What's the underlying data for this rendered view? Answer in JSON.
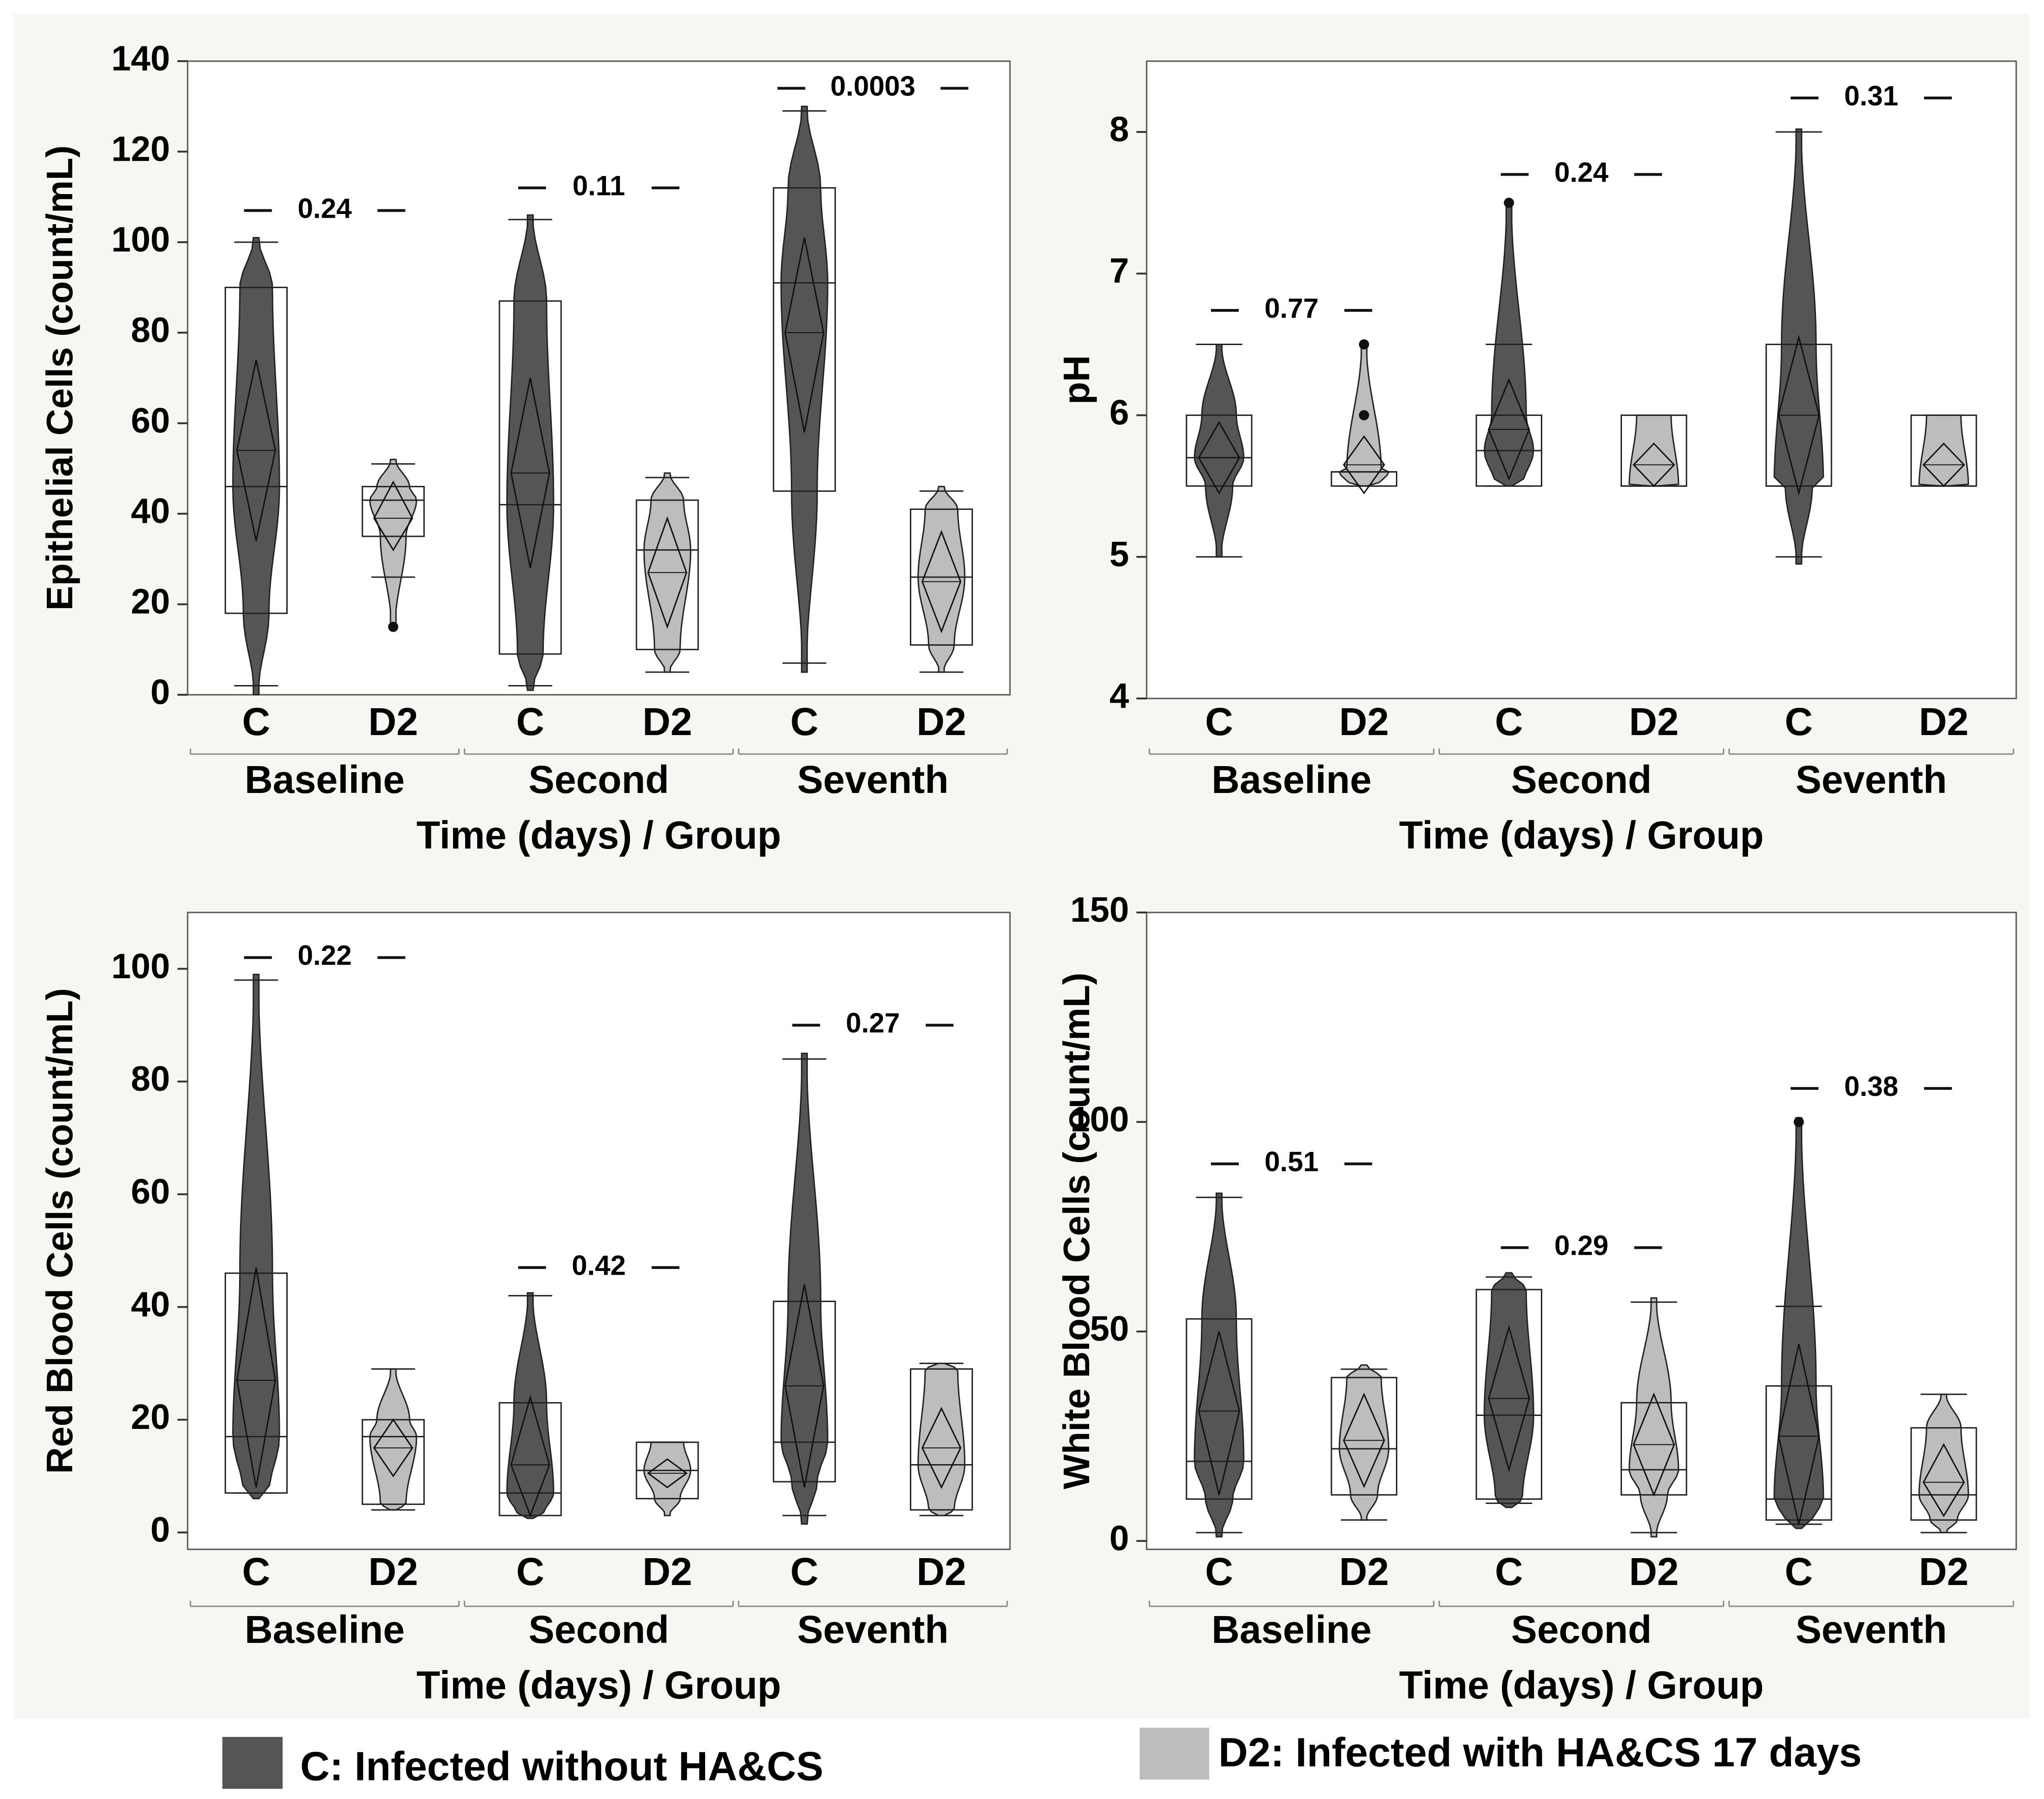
{
  "figure": {
    "x_axis_title": "Time (days) / Group",
    "time_labels": [
      "Baseline",
      "Second",
      "Seventh"
    ],
    "group_labels": [
      "C",
      "D2"
    ],
    "legend": [
      {
        "key": "C",
        "label": "C: Infected without HA&CS",
        "color": "#555555"
      },
      {
        "key": "D2",
        "label": "D2: Infected with HA&CS 17 days",
        "color": "#bdbdbd"
      }
    ],
    "colors": {
      "C": "#555555",
      "D2": "#bdbdbd",
      "background": "#f6f6f3",
      "plot_bg": "#ffffff"
    }
  },
  "chart_data": [
    {
      "type": "violin",
      "ylabel": "Epithelial Cells (count/mL)",
      "xlabel": "Time (days) / Group",
      "ylim": [
        0,
        140
      ],
      "yticks": [
        0,
        20,
        40,
        60,
        80,
        100,
        120,
        140
      ],
      "groups": [
        {
          "time": "Baseline",
          "group": "C",
          "min": 0,
          "max": 101,
          "q1": 18,
          "median": 46,
          "q3": 90,
          "mean": 54,
          "ci": [
            34,
            74
          ],
          "whisker": [
            2,
            100
          ],
          "outliers": []
        },
        {
          "time": "Baseline",
          "group": "D2",
          "min": 15,
          "max": 52,
          "q1": 35,
          "median": 43,
          "q3": 46,
          "mean": 39,
          "ci": [
            32,
            47
          ],
          "whisker": [
            26,
            51
          ],
          "outliers": [
            15
          ]
        },
        {
          "time": "Second",
          "group": "C",
          "min": 1,
          "max": 106,
          "q1": 9,
          "median": 42,
          "q3": 87,
          "mean": 49,
          "ci": [
            28,
            70
          ],
          "whisker": [
            2,
            105
          ],
          "outliers": []
        },
        {
          "time": "Second",
          "group": "D2",
          "min": 5,
          "max": 49,
          "q1": 10,
          "median": 32,
          "q3": 43,
          "mean": 27,
          "ci": [
            15,
            39
          ],
          "whisker": [
            5,
            48
          ],
          "outliers": []
        },
        {
          "time": "Seventh",
          "group": "C",
          "min": 5,
          "max": 130,
          "q1": 45,
          "median": 91,
          "q3": 112,
          "mean": 80,
          "ci": [
            58,
            101
          ],
          "whisker": [
            7,
            129
          ],
          "outliers": []
        },
        {
          "time": "Seventh",
          "group": "D2",
          "min": 5,
          "max": 46,
          "q1": 11,
          "median": 26,
          "q3": 41,
          "mean": 25,
          "ci": [
            14,
            36
          ],
          "whisker": [
            5,
            45
          ],
          "outliers": []
        }
      ],
      "p_values": [
        {
          "time": "Baseline",
          "text": "0.24",
          "y": 107
        },
        {
          "time": "Second",
          "text": "0.11",
          "y": 112
        },
        {
          "time": "Seventh",
          "text": "0.0003",
          "y": 134
        }
      ]
    },
    {
      "type": "violin",
      "ylabel": "pH",
      "xlabel": "Time (days) / Group",
      "ylim": [
        4,
        8.5
      ],
      "yticks": [
        4,
        5,
        6,
        7,
        8
      ],
      "groups": [
        {
          "time": "Baseline",
          "group": "C",
          "min": 5,
          "max": 6.5,
          "q1": 5.5,
          "median": 5.7,
          "q3": 6,
          "mean": 5.7,
          "ci": [
            5.45,
            5.95
          ],
          "whisker": [
            5,
            6.5
          ],
          "outliers": []
        },
        {
          "time": "Baseline",
          "group": "D2",
          "min": 5.5,
          "max": 6.5,
          "q1": 5.5,
          "median": 5.6,
          "q3": 5.6,
          "mean": 5.65,
          "ci": [
            5.45,
            5.85
          ],
          "whisker": [
            5.5,
            5.6
          ],
          "outliers": [
            6,
            6.5
          ]
        },
        {
          "time": "Second",
          "group": "C",
          "min": 5.5,
          "max": 7.5,
          "q1": 5.5,
          "median": 5.75,
          "q3": 6,
          "mean": 5.9,
          "ci": [
            5.55,
            6.25
          ],
          "whisker": [
            5.5,
            6.5
          ],
          "outliers": [
            7.5
          ]
        },
        {
          "time": "Second",
          "group": "D2",
          "min": 5.5,
          "max": 6,
          "q1": 5.5,
          "median": 5.5,
          "q3": 6,
          "mean": 5.65,
          "ci": [
            5.5,
            5.8
          ],
          "whisker": [
            5.5,
            6
          ],
          "outliers": []
        },
        {
          "time": "Seventh",
          "group": "C",
          "min": 4.95,
          "max": 8.02,
          "q1": 5.5,
          "median": 5.5,
          "q3": 6.5,
          "mean": 6,
          "ci": [
            5.45,
            6.55
          ],
          "whisker": [
            5,
            8
          ],
          "outliers": []
        },
        {
          "time": "Seventh",
          "group": "D2",
          "min": 5.5,
          "max": 6,
          "q1": 5.5,
          "median": 5.5,
          "q3": 6,
          "mean": 5.65,
          "ci": [
            5.5,
            5.8
          ],
          "whisker": [
            5.5,
            6
          ],
          "outliers": []
        }
      ],
      "p_values": [
        {
          "time": "Baseline",
          "text": "0.77",
          "y": 6.74
        },
        {
          "time": "Second",
          "text": "0.24",
          "y": 7.7
        },
        {
          "time": "Seventh",
          "text": "0.31",
          "y": 8.24
        }
      ]
    },
    {
      "type": "violin",
      "ylabel": "Red Blood Cells (count/mL)",
      "xlabel": "Time (days) / Group",
      "ylim": [
        -3,
        110
      ],
      "yticks": [
        0,
        20,
        40,
        60,
        80,
        100
      ],
      "groups": [
        {
          "time": "Baseline",
          "group": "C",
          "min": 6,
          "max": 99,
          "q1": 7,
          "median": 17,
          "q3": 46,
          "mean": 27,
          "ci": [
            8,
            47
          ],
          "whisker": [
            7,
            98
          ],
          "outliers": []
        },
        {
          "time": "Baseline",
          "group": "D2",
          "min": 4,
          "max": 29,
          "q1": 5,
          "median": 17,
          "q3": 20,
          "mean": 15,
          "ci": [
            10,
            20
          ],
          "whisker": [
            4,
            29
          ],
          "outliers": []
        },
        {
          "time": "Second",
          "group": "C",
          "min": 2.5,
          "max": 42.5,
          "q1": 3,
          "median": 7,
          "q3": 23,
          "mean": 12,
          "ci": [
            3,
            24
          ],
          "whisker": [
            3,
            42
          ],
          "outliers": []
        },
        {
          "time": "Second",
          "group": "D2",
          "min": 3,
          "max": 16,
          "q1": 6,
          "median": 11,
          "q3": 16,
          "mean": 10.5,
          "ci": [
            8,
            13
          ],
          "whisker": [
            6,
            16
          ],
          "outliers": []
        },
        {
          "time": "Seventh",
          "group": "C",
          "min": 1.5,
          "max": 85,
          "q1": 9,
          "median": 16,
          "q3": 41,
          "mean": 26,
          "ci": [
            8,
            44
          ],
          "whisker": [
            3,
            84
          ],
          "outliers": []
        },
        {
          "time": "Seventh",
          "group": "D2",
          "min": 3,
          "max": 30,
          "q1": 4,
          "median": 12,
          "q3": 29,
          "mean": 15,
          "ci": [
            8,
            22
          ],
          "whisker": [
            3,
            30
          ],
          "outliers": []
        }
      ],
      "p_values": [
        {
          "time": "Baseline",
          "text": "0.22",
          "y": 102
        },
        {
          "time": "Second",
          "text": "0.42",
          "y": 47
        },
        {
          "time": "Seventh",
          "text": "0.27",
          "y": 90
        }
      ]
    },
    {
      "type": "violin",
      "ylabel": "White Blood Cells (count/mL)",
      "xlabel": "Time (days) / Group",
      "ylim": [
        -2,
        150
      ],
      "yticks": [
        0,
        50,
        100,
        150
      ],
      "groups": [
        {
          "time": "Baseline",
          "group": "C",
          "min": 1,
          "max": 83,
          "q1": 10,
          "median": 19,
          "q3": 53,
          "mean": 31,
          "ci": [
            11,
            50
          ],
          "whisker": [
            2,
            82
          ],
          "outliers": []
        },
        {
          "time": "Baseline",
          "group": "D2",
          "min": 5,
          "max": 42,
          "q1": 11,
          "median": 22,
          "q3": 39,
          "mean": 24,
          "ci": [
            13,
            35
          ],
          "whisker": [
            5,
            41
          ],
          "outliers": []
        },
        {
          "time": "Second",
          "group": "C",
          "min": 8,
          "max": 64,
          "q1": 10,
          "median": 30,
          "q3": 60,
          "mean": 34,
          "ci": [
            17,
            51
          ],
          "whisker": [
            9,
            63
          ],
          "outliers": []
        },
        {
          "time": "Second",
          "group": "D2",
          "min": 1,
          "max": 58,
          "q1": 11,
          "median": 17,
          "q3": 33,
          "mean": 23,
          "ci": [
            11,
            35
          ],
          "whisker": [
            2,
            57
          ],
          "outliers": []
        },
        {
          "time": "Seventh",
          "group": "C",
          "min": 3,
          "max": 101,
          "q1": 5,
          "median": 10,
          "q3": 37,
          "mean": 25,
          "ci": [
            4,
            47
          ],
          "whisker": [
            4,
            56
          ],
          "outliers": [
            100
          ]
        },
        {
          "time": "Seventh",
          "group": "D2",
          "min": 2,
          "max": 35,
          "q1": 5,
          "median": 11,
          "q3": 27,
          "mean": 14,
          "ci": [
            6,
            23
          ],
          "whisker": [
            2,
            35
          ],
          "outliers": []
        }
      ],
      "p_values": [
        {
          "time": "Baseline",
          "text": "0.51",
          "y": 90
        },
        {
          "time": "Second",
          "text": "0.29",
          "y": 70
        },
        {
          "time": "Seventh",
          "text": "0.38",
          "y": 108
        }
      ]
    }
  ]
}
